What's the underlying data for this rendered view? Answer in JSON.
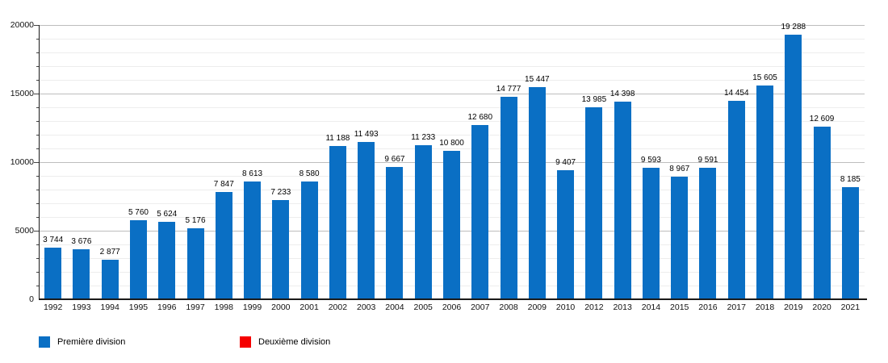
{
  "chart_data": {
    "type": "bar",
    "title": "",
    "xlabel": "",
    "ylabel": "",
    "categories": [
      "1992",
      "1993",
      "1994",
      "1995",
      "1996",
      "1997",
      "1998",
      "1999",
      "2000",
      "2001",
      "2002",
      "2003",
      "2004",
      "2005",
      "2006",
      "2007",
      "2008",
      "2009",
      "2010",
      "2012",
      "2013",
      "2014",
      "2015",
      "2016",
      "2017",
      "2018",
      "2019",
      "2020",
      "2021"
    ],
    "series": [
      {
        "name": "Première division",
        "color": "#0a6fc4",
        "values": [
          3744,
          3676,
          2877,
          5760,
          5624,
          5176,
          7847,
          8613,
          7233,
          8580,
          11188,
          11493,
          9667,
          11233,
          10800,
          12680,
          14777,
          15447,
          9407,
          13985,
          14398,
          9593,
          8967,
          9591,
          14454,
          15605,
          19288,
          12609,
          8185
        ]
      },
      {
        "name": "Deuxième division",
        "color": "#f50000",
        "values": []
      }
    ],
    "value_labels": [
      "3 744",
      "3 676",
      "2 877",
      "5 760",
      "5 624",
      "5 176",
      "7 847",
      "8 613",
      "7 233",
      "8 580",
      "11 188",
      "11 493",
      "9 667",
      "11 233",
      "10 800",
      "12 680",
      "14 777",
      "15 447",
      "9 407",
      "13 985",
      "14 398",
      "9 593",
      "8 967",
      "9 591",
      "14 454",
      "15 605",
      "19 288",
      "12 609",
      "8 185"
    ],
    "ylim": [
      0,
      20000
    ],
    "y_ticks": [
      0,
      5000,
      10000,
      15000,
      20000
    ],
    "y_tick_labels": [
      "0",
      "5000",
      "10000",
      "15000",
      "20000"
    ],
    "y_minor_step": 1000,
    "y_major_step": 5000,
    "grid": true,
    "legend_position": "bottom-left",
    "note": "year 2011 absent from axis"
  },
  "legend": {
    "items": [
      {
        "label": "Première division",
        "color": "#0a6fc4"
      },
      {
        "label": "Deuxième division",
        "color": "#f50000"
      }
    ]
  },
  "colors": {
    "bar_primary": "#0a6fc4",
    "legend_secondary": "#f50000",
    "axis": "#1a1a1a",
    "gridline_major": "#bdbdbd",
    "gridline_minor": "#ededed",
    "background": "#ffffff"
  }
}
